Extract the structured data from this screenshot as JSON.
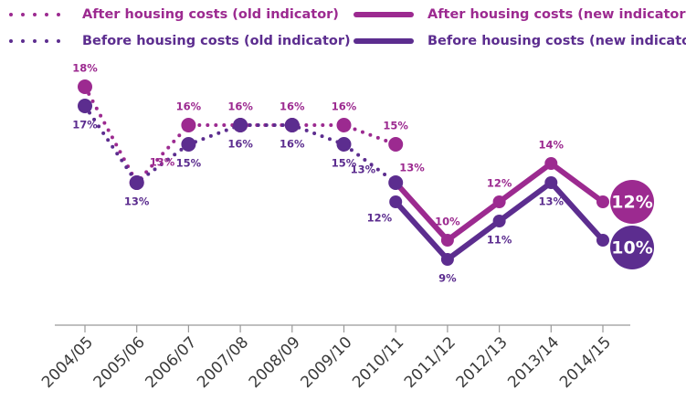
{
  "chart_data": {
    "type": "line",
    "categories": [
      "2004/05",
      "2005/06",
      "2006/07",
      "2007/08",
      "2008/09",
      "2009/10",
      "2010/11",
      "2011/12",
      "2012/13",
      "2013/14",
      "2014/15"
    ],
    "series": [
      {
        "name": "After housing costs (old indicator)",
        "color": "#9c2a90",
        "line_style": "dotted",
        "values": [
          18,
          13,
          16,
          16,
          16,
          16,
          15,
          null,
          null,
          null,
          null
        ],
        "value_labels": [
          "18%",
          "13%",
          "16%",
          "16%",
          "16%",
          "16%",
          "15%",
          null,
          null,
          null,
          null
        ]
      },
      {
        "name": "After housing costs (new indicator)",
        "color": "#9c2a90",
        "line_style": "solid",
        "values": [
          null,
          null,
          null,
          null,
          null,
          null,
          13,
          10,
          12,
          14,
          12
        ],
        "value_labels": [
          null,
          null,
          null,
          null,
          null,
          null,
          "13%",
          "10%",
          "12%",
          "14%",
          "12%"
        ]
      },
      {
        "name": "Before housing costs (old indicator)",
        "color": "#5c2d8f",
        "line_style": "dotted",
        "values": [
          17,
          13,
          15,
          16,
          16,
          15,
          13,
          null,
          null,
          null,
          null
        ],
        "value_labels": [
          "17%",
          "13%",
          "15%",
          "16%",
          "16%",
          "15%",
          "13%",
          null,
          null,
          null,
          null
        ]
      },
      {
        "name": "Before housing costs (new indicator)",
        "color": "#5c2d8f",
        "line_style": "solid",
        "values": [
          null,
          null,
          null,
          null,
          null,
          null,
          12,
          9,
          11,
          13,
          10
        ],
        "value_labels": [
          null,
          null,
          null,
          null,
          null,
          null,
          "12%",
          "9%",
          "11%",
          "13%",
          "10%"
        ]
      }
    ]
  }
}
